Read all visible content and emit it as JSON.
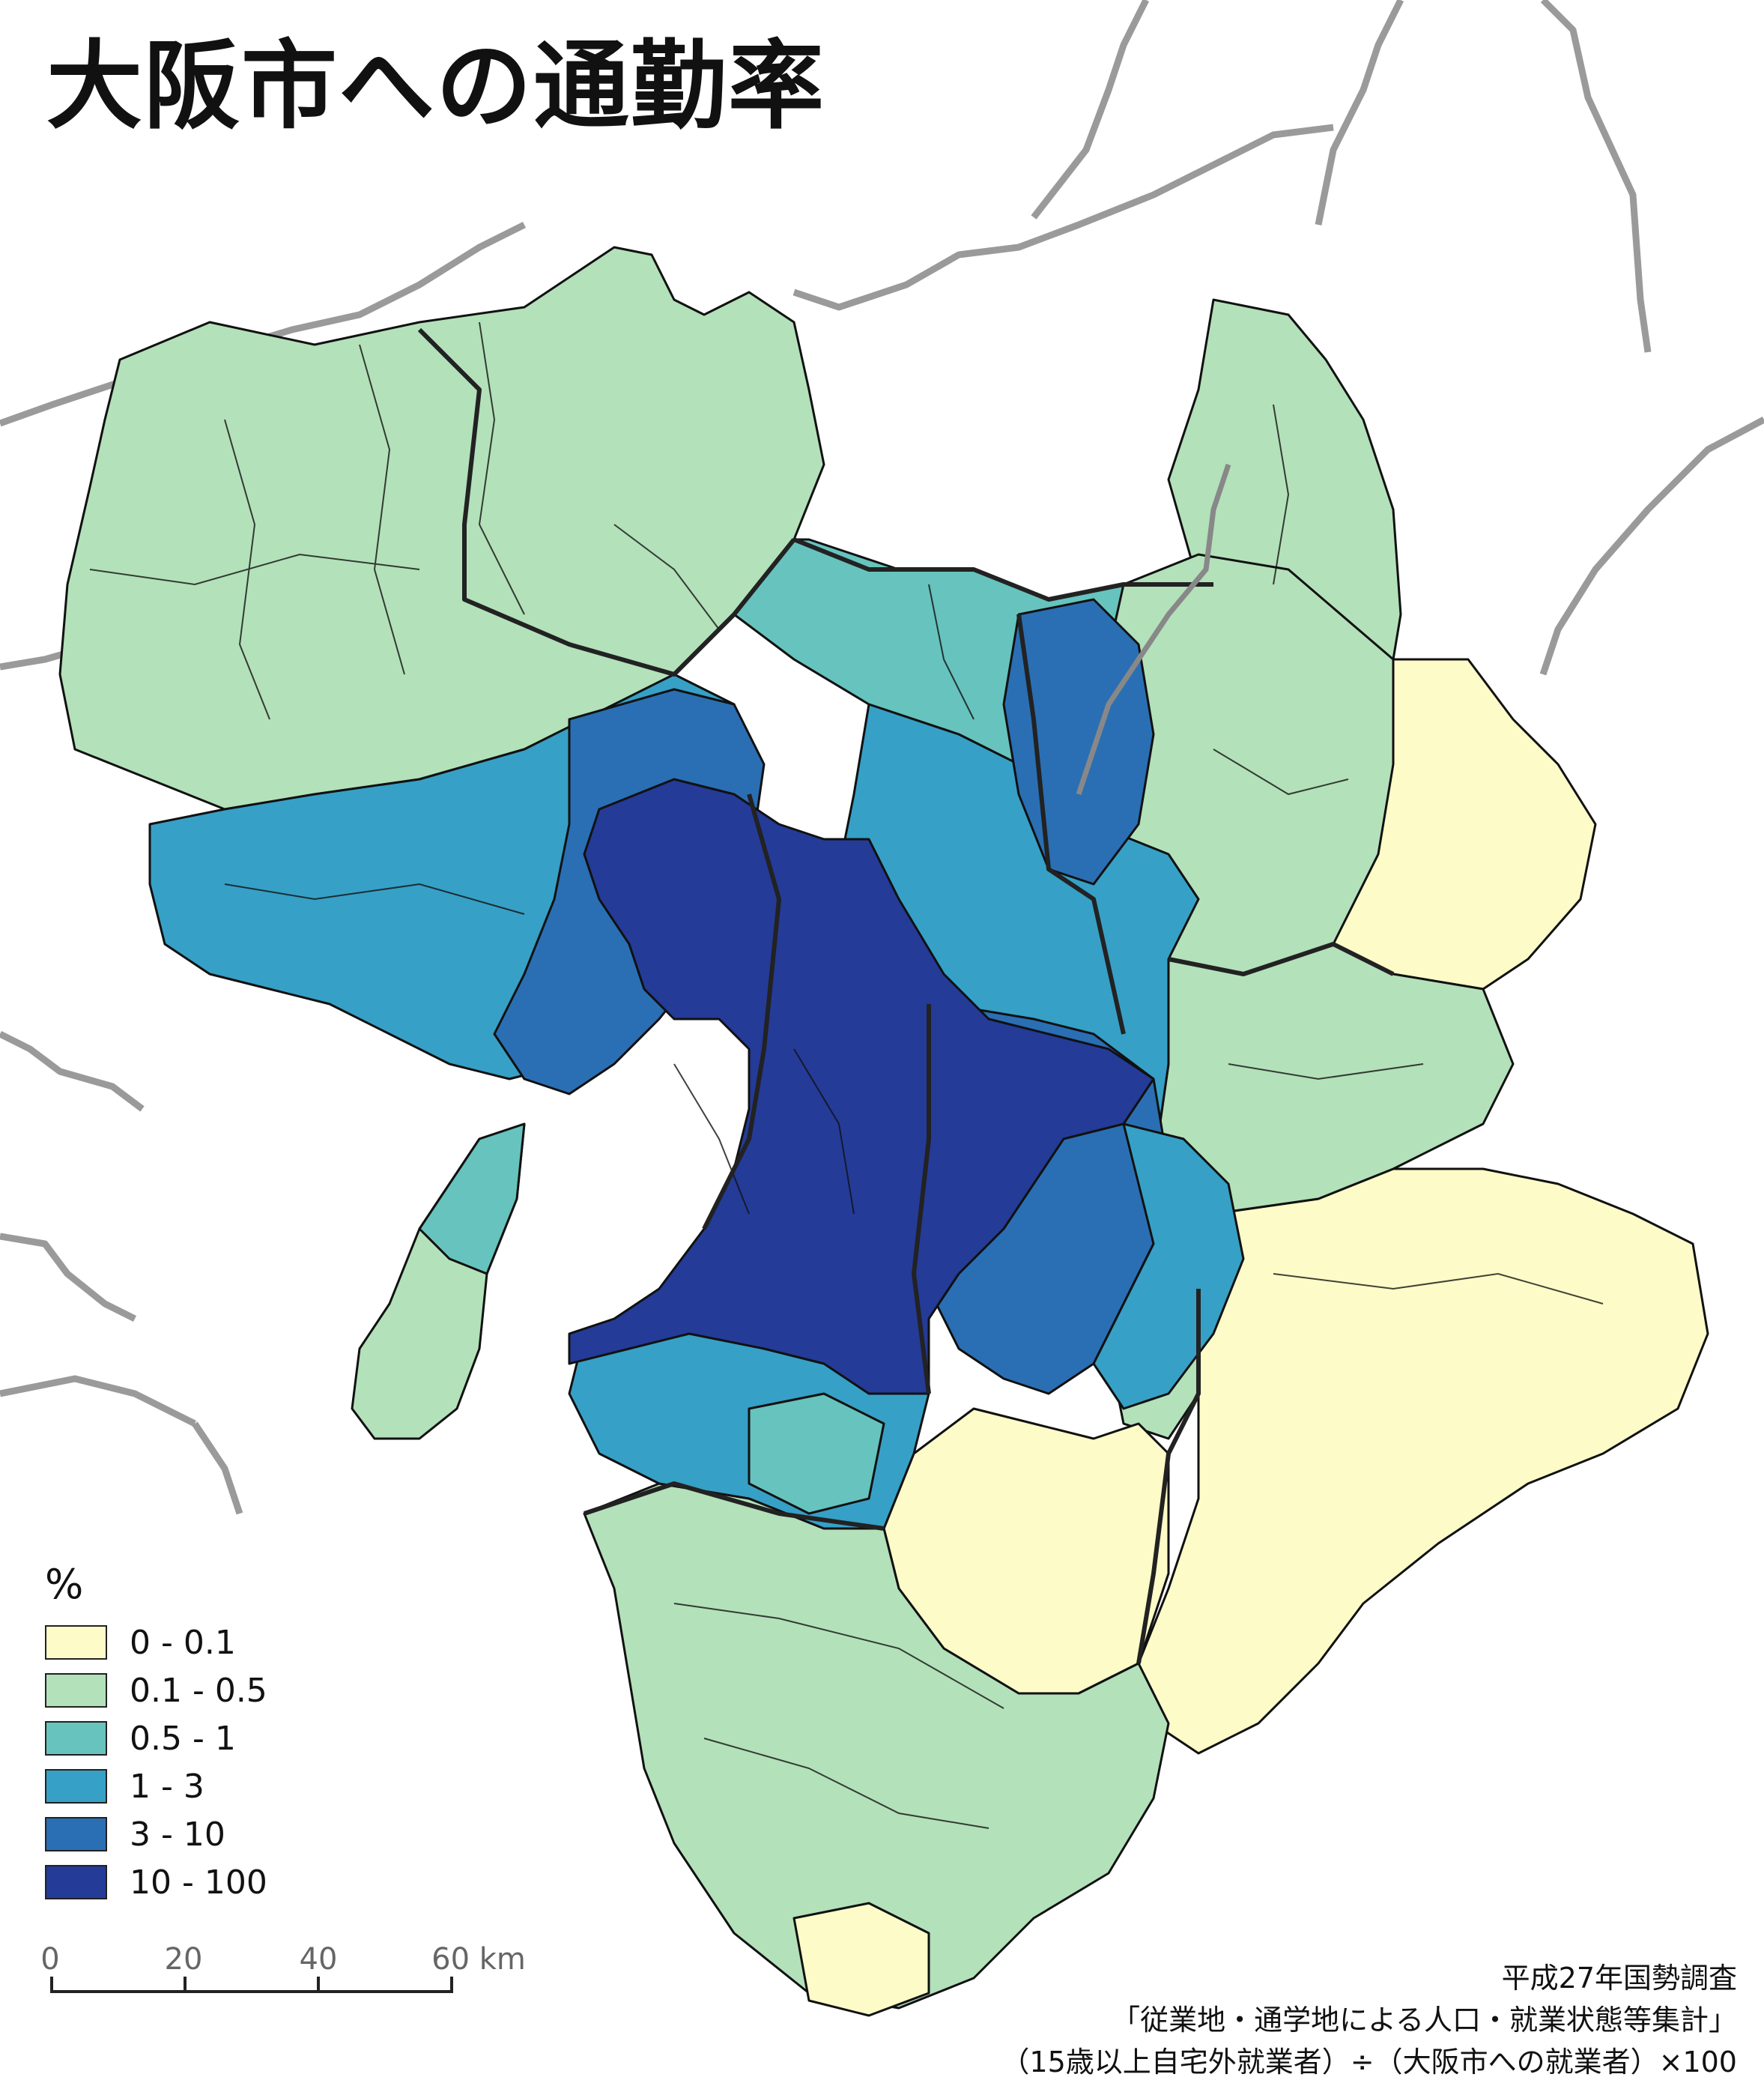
{
  "title": "大阪市への通勤率",
  "legend": {
    "unit": "%",
    "classes": [
      {
        "label": "0 - 0.1",
        "color": "#fdfcc8"
      },
      {
        "label": "0.1 - 0.5",
        "color": "#b3e1ba"
      },
      {
        "label": "0.5 - 1",
        "color": "#67c3bd"
      },
      {
        "label": "1 - 3",
        "color": "#37a0c6"
      },
      {
        "label": "3 - 10",
        "color": "#2a6fb4"
      },
      {
        "label": "10 - 100",
        "color": "#243b98"
      }
    ]
  },
  "scale_bar": {
    "ticks": [
      "0",
      "20",
      "40",
      "60 km"
    ]
  },
  "source": {
    "line1": "平成27年国勢調査",
    "line2": "「従業地・通学地による人口・就業状態等集計」",
    "line3": "（15歳以上自宅外就業者）÷（大阪市への就業者）×100"
  }
}
